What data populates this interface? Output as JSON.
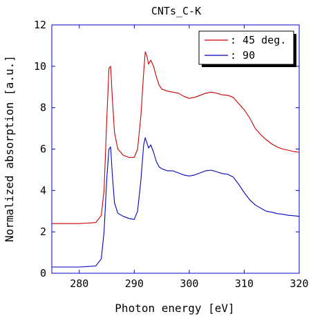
{
  "chart_data": {
    "type": "line",
    "title": "CNTs_C-K",
    "xlabel": "Photon energy [eV]",
    "ylabel": "Normalized absorption [a.u.]",
    "xlim": [
      275,
      320
    ],
    "ylim": [
      0,
      12
    ],
    "xticks": [
      280,
      290,
      300,
      310,
      320
    ],
    "yticks": [
      0,
      2,
      4,
      6,
      8,
      10,
      12
    ],
    "grid": false,
    "legend_position": "top-right",
    "series": [
      {
        "name": ": 45 deg.",
        "color": "#cc0000",
        "x": [
          275,
          280,
          283,
          284,
          284.5,
          285,
          285.4,
          285.7,
          286,
          286.4,
          287,
          288,
          289,
          290,
          290.6,
          291.2,
          291.7,
          292,
          292.3,
          292.6,
          293,
          293.5,
          294,
          294.5,
          295,
          296,
          297,
          298,
          299,
          300,
          301,
          302,
          303,
          304,
          305,
          306,
          307,
          308,
          309,
          310,
          311,
          312,
          313,
          314,
          315,
          316,
          317,
          318,
          319,
          320
        ],
        "y": [
          2.4,
          2.4,
          2.45,
          2.8,
          4.0,
          7.5,
          9.9,
          10.0,
          8.5,
          6.8,
          6.0,
          5.7,
          5.6,
          5.6,
          6.0,
          7.6,
          9.7,
          10.7,
          10.5,
          10.1,
          10.3,
          10.0,
          9.5,
          9.1,
          8.9,
          8.8,
          8.75,
          8.7,
          8.55,
          8.45,
          8.5,
          8.6,
          8.7,
          8.75,
          8.7,
          8.62,
          8.6,
          8.5,
          8.2,
          7.9,
          7.5,
          7.0,
          6.7,
          6.45,
          6.25,
          6.1,
          6.0,
          5.95,
          5.88,
          5.85
        ]
      },
      {
        "name": ": 90",
        "color": "#0000bb",
        "x": [
          275,
          280,
          283,
          284,
          284.5,
          285,
          285.4,
          285.7,
          286,
          286.4,
          287,
          288,
          289,
          290,
          290.6,
          291.2,
          291.7,
          292,
          292.3,
          292.6,
          293,
          293.5,
          294,
          294.5,
          295,
          296,
          297,
          298,
          299,
          300,
          301,
          302,
          303,
          304,
          305,
          306,
          307,
          308,
          309,
          310,
          311,
          312,
          313,
          314,
          315,
          316,
          317,
          318,
          319,
          320
        ],
        "y": [
          0.3,
          0.3,
          0.35,
          0.7,
          2.0,
          4.6,
          6.0,
          6.1,
          4.8,
          3.4,
          2.9,
          2.75,
          2.65,
          2.6,
          3.0,
          4.5,
          6.2,
          6.55,
          6.3,
          6.05,
          6.2,
          5.85,
          5.4,
          5.15,
          5.05,
          4.95,
          4.95,
          4.85,
          4.75,
          4.7,
          4.75,
          4.85,
          4.95,
          4.98,
          4.9,
          4.82,
          4.78,
          4.65,
          4.3,
          3.9,
          3.55,
          3.3,
          3.15,
          3.0,
          2.95,
          2.88,
          2.85,
          2.8,
          2.78,
          2.75
        ]
      }
    ]
  }
}
